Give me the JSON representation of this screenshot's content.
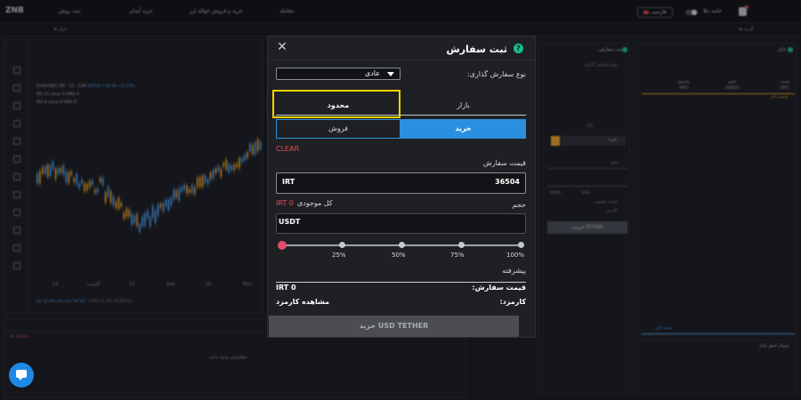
{
  "topbar": {
    "logo": "ZNB",
    "nav_items": [
      "ثبت روش",
      "خرید آسان",
      "خرید و فروش حواله ارز",
      "معامله"
    ],
    "language": "فارسی",
    "user": "حامد علا"
  },
  "subbar": {
    "left_tab": "ابزار ها",
    "right_tab": "گزینه ها"
  },
  "chart": {
    "legend_line1": "EUR/USDT IRT · 15 · EXB",
    "legend_line1_values": "36750 ↑36.04 +0.73%",
    "legend_line2": "MA 21 close 0 SMA 9",
    "legend_line3": "MA 9 close 0 SMA 9",
    "x_labels": [
      "14",
      "آگوست",
      "15",
      "Sep",
      "16",
      "Nov",
      "17"
    ],
    "footer_left": "5y 1y 6m 3m 1m 5d 1d",
    "footer_right": "(UTC+3:30) 16:06:53",
    "footer_log": "log  auto"
  },
  "orders_panel": {
    "red_tab": "سفارش ها",
    "empty_text": "سفارشی وجود ندارد"
  },
  "form_panel": {
    "title": "ثبت سفارش",
    "type_label": "نوع سفارش گذاری:",
    "market": "بازار",
    "buy": "خرید",
    "volume": "حجم",
    "pct_labels": [
      "0%",
      "50%",
      "100%"
    ],
    "fee_label": "قیمت تخمینی:",
    "fee2_label": "کارمزد:",
    "btn": "فروش TETHER"
  },
  "book_panel": {
    "title": "بازار",
    "columns": [
      {
        "name": "قیمت",
        "unit": "(IRT)"
      },
      {
        "name": "حجم",
        "unit": "(USDT)"
      },
      {
        "name": "مجموع",
        "unit": "(IRT)"
      }
    ],
    "last_price": "قیمت آخر",
    "footer": "قیمت آخر"
  },
  "depth_panel": {
    "title": "نمودار عمق بازار"
  },
  "modal": {
    "title": "ثبت سفارش",
    "order_type_label": "نوع سفارش گذاری:",
    "order_type_value": "عادی",
    "tab_market": "بازار",
    "tab_limit": "محدود",
    "buy": "خرید",
    "sell": "فروش",
    "clear": "CLEAR",
    "price_label": "قیمت سفارش",
    "price_currency": "IRT",
    "price_value": "36504",
    "volume_label": "حجم",
    "balance_label": "کل موجودی",
    "balance_value": "IRT 0",
    "volume_unit": "USDT",
    "slider_percent": 0,
    "slider_labels": [
      "25%",
      "50%",
      "75%",
      "100%"
    ],
    "advanced": "پیشرفته",
    "order_price_label": "قیمت سفارش:",
    "order_price_value": "IRT 0",
    "fee_label": "کارمزد:",
    "fee_value": "مشاهده کارمزد",
    "submit": "خرید USD TETHER"
  },
  "colors": {
    "accent_blue": "#2b8fe0",
    "danger_red": "#e24c55",
    "highlight_yellow": "#f5d300",
    "success_green": "#19c08b",
    "candle_up": "#4aa3ff",
    "candle_down": "#f5a623"
  }
}
